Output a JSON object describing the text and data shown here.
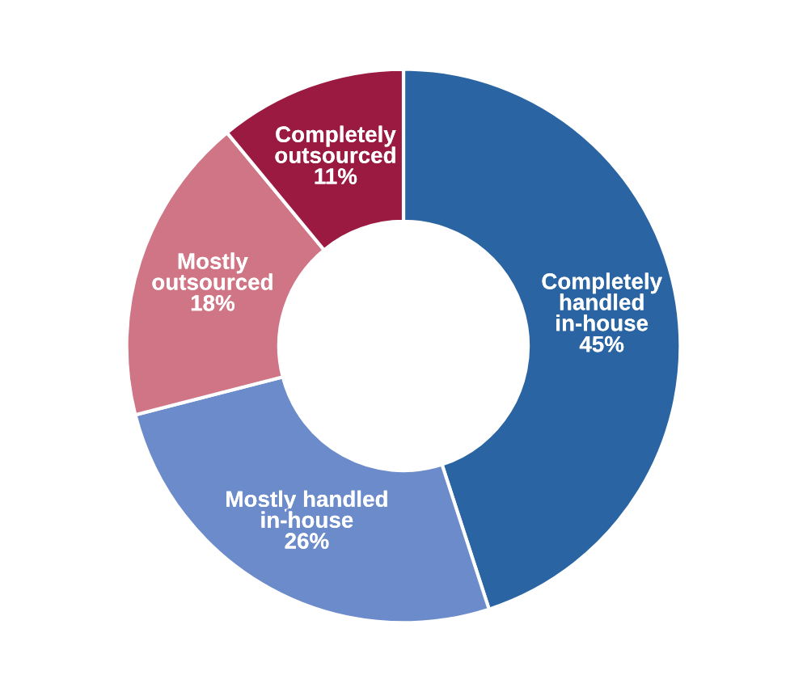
{
  "chart_data": {
    "type": "donut",
    "categories": [
      "Completely handled in-house",
      "Mostly handled in-house",
      "Mostly outsourced",
      "Completely outsourced"
    ],
    "values": [
      45,
      26,
      18,
      11
    ],
    "colors": [
      "#2a64a3",
      "#6c8bca",
      "#d07585",
      "#9a1a42"
    ],
    "value_labels": [
      "45%",
      "26%",
      "18%",
      "11%"
    ],
    "legend": false
  }
}
